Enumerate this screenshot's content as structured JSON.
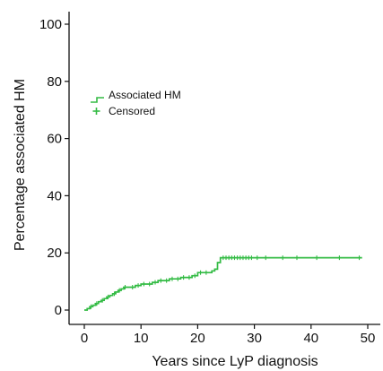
{
  "chart_data": {
    "type": "line",
    "title": "",
    "xlabel": "Years since LyP diagnosis",
    "ylabel": "Percentage associated HM",
    "xlim": [
      0,
      50
    ],
    "ylim": [
      0,
      100
    ],
    "x_ticks": [
      0,
      10,
      20,
      30,
      40,
      50
    ],
    "y_ticks": [
      0,
      20,
      40,
      60,
      80,
      100
    ],
    "x_tick_labels": [
      "0",
      "10",
      "20",
      "30",
      "40",
      "50"
    ],
    "y_tick_labels": [
      "0",
      "20",
      "40",
      "60",
      "80",
      "100"
    ],
    "grid": false,
    "legend_position": "upper-left",
    "series": [
      {
        "name": "Associated HM",
        "style": "step",
        "color": "#33bb44",
        "x": [
          0,
          0.5,
          1,
          1.5,
          2,
          2.5,
          3,
          3.5,
          4,
          4.5,
          5,
          5.5,
          6,
          6.5,
          7,
          8,
          9,
          10,
          11,
          12,
          13,
          14,
          15,
          16,
          17,
          18,
          19,
          20,
          21,
          22,
          22.5,
          23,
          23.5,
          24,
          49
        ],
        "y": [
          0,
          0.5,
          1.2,
          1.7,
          2.3,
          2.9,
          3.4,
          4.0,
          4.6,
          5.1,
          5.7,
          6.3,
          6.9,
          7.4,
          8.0,
          8.0,
          8.6,
          9.1,
          9.1,
          9.7,
          10.3,
          10.3,
          10.9,
          10.9,
          11.4,
          11.4,
          12.0,
          13.1,
          13.1,
          13.1,
          13.7,
          14.3,
          16.6,
          18.3,
          18.3
        ]
      },
      {
        "name": "Censored",
        "style": "marker-plus",
        "color": "#33bb44",
        "x": [
          1.2,
          2.2,
          3.2,
          4.2,
          5.3,
          6.2,
          7.2,
          8.5,
          9.5,
          10.5,
          11.5,
          12.5,
          13.5,
          14.5,
          15.5,
          16.5,
          17.5,
          18.5,
          19.5,
          20.5,
          21.5,
          24.5,
          25,
          25.5,
          26,
          26.5,
          27,
          27.5,
          28,
          28.5,
          29,
          29.5,
          30.5,
          32,
          35,
          37.5,
          41,
          45,
          48.5
        ],
        "y": [
          1.2,
          2.3,
          3.4,
          4.6,
          5.7,
          6.9,
          8.0,
          8.0,
          8.6,
          9.1,
          9.1,
          9.7,
          10.3,
          10.3,
          10.9,
          10.9,
          11.4,
          11.4,
          12.0,
          13.1,
          13.1,
          18.3,
          18.3,
          18.3,
          18.3,
          18.3,
          18.3,
          18.3,
          18.3,
          18.3,
          18.3,
          18.3,
          18.3,
          18.3,
          18.3,
          18.3,
          18.3,
          18.3,
          18.3
        ]
      }
    ],
    "legend": [
      {
        "label": "Associated HM",
        "symbol": "step-icon"
      },
      {
        "label": "Censored",
        "symbol": "plus-icon"
      }
    ]
  }
}
